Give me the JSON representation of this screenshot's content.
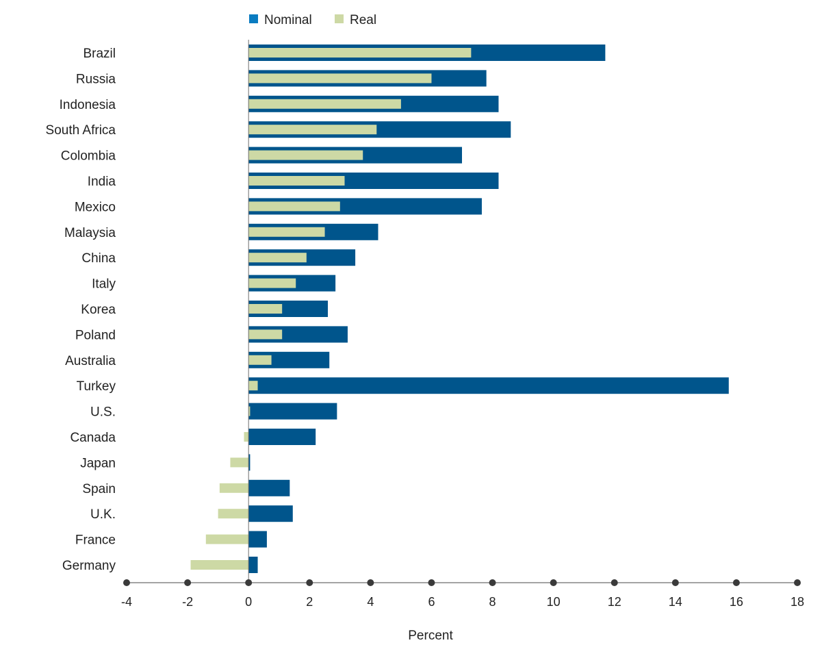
{
  "chart_data": {
    "type": "bar",
    "orientation": "horizontal",
    "categories": [
      "Brazil",
      "Russia",
      "Indonesia",
      "South Africa",
      "Colombia",
      "India",
      "Mexico",
      "Malaysia",
      "China",
      "Italy",
      "Korea",
      "Poland",
      "Australia",
      "Turkey",
      "U.S.",
      "Canada",
      "Japan",
      "Spain",
      "U.K.",
      "France",
      "Germany"
    ],
    "series": [
      {
        "name": "Nominal",
        "color": "#00558c",
        "values": [
          11.7,
          7.8,
          8.2,
          8.6,
          7.0,
          8.2,
          7.65,
          4.25,
          3.5,
          2.85,
          2.6,
          3.25,
          2.65,
          15.75,
          2.9,
          2.2,
          0.05,
          1.35,
          1.45,
          0.6,
          0.3
        ]
      },
      {
        "name": "Real",
        "color": "#cdd9a5",
        "values": [
          7.3,
          6.0,
          5.0,
          4.2,
          3.75,
          3.15,
          3.0,
          2.5,
          1.9,
          1.55,
          1.1,
          1.1,
          0.75,
          0.3,
          0.05,
          -0.15,
          -0.6,
          -0.95,
          -1.0,
          -1.4,
          -1.9
        ]
      }
    ],
    "xlabel": "Percent",
    "xlim": [
      -4,
      18
    ],
    "xticks": [
      -4,
      -2,
      0,
      2,
      4,
      6,
      8,
      10,
      12,
      14,
      16,
      18
    ],
    "legend_position": "top-center",
    "grid": false
  }
}
